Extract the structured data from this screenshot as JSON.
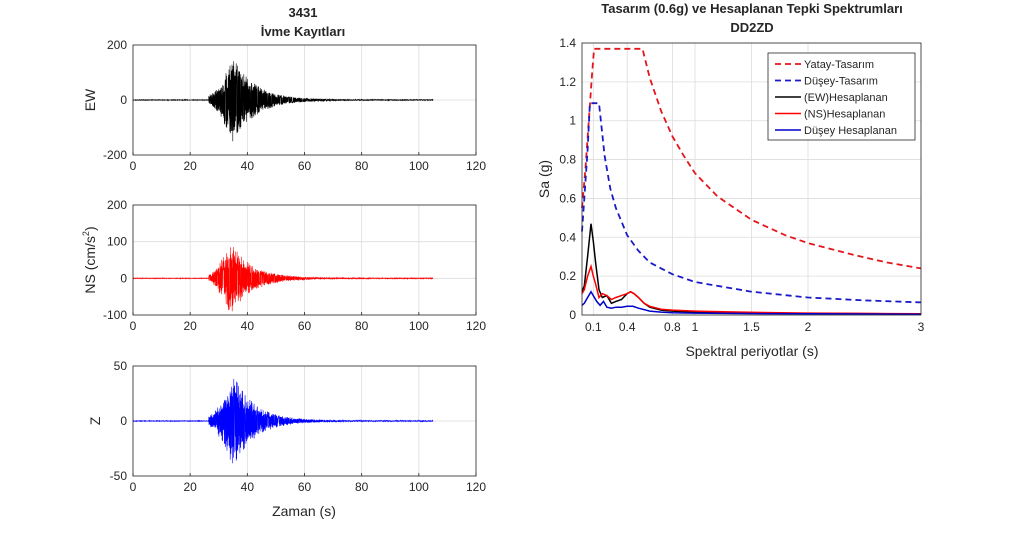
{
  "chart_data": [
    {
      "type": "line",
      "title": "3431",
      "subtitle": "İvme Kayıtları",
      "ylabel": "EW",
      "xlabel": "",
      "xlim": [
        0,
        120
      ],
      "ylim": [
        -200,
        200
      ],
      "xticks": [
        "0",
        "20",
        "40",
        "60",
        "80",
        "100",
        "120"
      ],
      "yticks": [
        "200",
        "0",
        "-200"
      ],
      "color": "#000000",
      "record": {
        "start": 0,
        "end": 105,
        "onset": 26.5,
        "peak_time": 35,
        "peak_pos": 158,
        "peak_neg": -125
      },
      "grid": true
    },
    {
      "type": "line",
      "ylabel_main": "NS (cm/s",
      "ylabel_sup": "2",
      "ylabel_end": ")",
      "xlabel": "",
      "xlim": [
        0,
        120
      ],
      "ylim": [
        -100,
        200
      ],
      "xticks": [
        "0",
        "20",
        "40",
        "60",
        "80",
        "100",
        "120"
      ],
      "yticks": [
        "200",
        "100",
        "0",
        "-100"
      ],
      "color": "#ff0000",
      "record": {
        "start": 0,
        "end": 105,
        "onset": 26.5,
        "peak_time": 34,
        "peak_pos": 100,
        "peak_neg": -72
      },
      "grid": true
    },
    {
      "type": "line",
      "ylabel": "Z",
      "xlabel": "Zaman (s)",
      "xlim": [
        0,
        120
      ],
      "ylim": [
        -50,
        50
      ],
      "xticks": [
        "0",
        "20",
        "40",
        "60",
        "80",
        "100",
        "120"
      ],
      "yticks": [
        "50",
        "0",
        "-50"
      ],
      "color": "#0000ff",
      "record": {
        "start": 0,
        "end": 105,
        "onset": 26.5,
        "peak_time": 35,
        "peak_pos": 30,
        "peak_neg": -42
      },
      "grid": true
    },
    {
      "type": "line",
      "title": "Tasarım (0.6g) ve Hesaplanan Tepki Spektrumları",
      "subtitle": "DD2ZD",
      "xlabel": "Spektral periyotlar (s)",
      "ylabel": "Sa (g)",
      "xlim": [
        0,
        3
      ],
      "ylim": [
        0,
        1.4
      ],
      "xticks": [
        0.1,
        0.4,
        0.8,
        1,
        1.5,
        2,
        3
      ],
      "xtick_labels": [
        "0.1",
        "0.4",
        "0.8",
        "1",
        "1.5",
        "2",
        "3"
      ],
      "yticks": [
        0,
        0.2,
        0.4,
        0.6,
        0.8,
        1,
        1.2,
        1.4
      ],
      "ytick_labels": [
        "0",
        "0.2",
        "0.4",
        "0.6",
        "0.8",
        "1",
        "1.2",
        "1.4"
      ],
      "legend_position": "top-right",
      "grid": true,
      "series": [
        {
          "name": "Yatay-Tasarım",
          "color": "#e3161b",
          "dash": true,
          "x": [
            0,
            0.03,
            0.06,
            0.09,
            0.107,
            0.2,
            0.3,
            0.4,
            0.5,
            0.535,
            0.6,
            0.7,
            0.8,
            0.9,
            1.0,
            1.2,
            1.5,
            1.8,
            2.0,
            2.4,
            2.7,
            3.0
          ],
          "y": [
            0.55,
            0.75,
            1.0,
            1.25,
            1.37,
            1.37,
            1.37,
            1.37,
            1.37,
            1.37,
            1.22,
            1.05,
            0.92,
            0.82,
            0.73,
            0.61,
            0.49,
            0.41,
            0.37,
            0.31,
            0.27,
            0.24
          ]
        },
        {
          "name": "Düşey-Tasarım",
          "color": "#1a1ac8",
          "dash": true,
          "x": [
            0,
            0.02,
            0.05,
            0.07,
            0.1,
            0.13,
            0.15,
            0.2,
            0.25,
            0.3,
            0.4,
            0.5,
            0.6,
            0.7,
            0.8,
            0.9,
            1.0,
            1.2,
            1.5,
            2.0,
            2.5,
            3.0
          ],
          "y": [
            0.43,
            0.6,
            0.85,
            1.09,
            1.09,
            1.09,
            1.09,
            0.82,
            0.65,
            0.55,
            0.41,
            0.33,
            0.27,
            0.24,
            0.21,
            0.19,
            0.17,
            0.15,
            0.12,
            0.09,
            0.075,
            0.065
          ]
        },
        {
          "name": "(EW)Hesaplanan",
          "color": "#000000",
          "dash": false,
          "x": [
            0,
            0.02,
            0.05,
            0.08,
            0.1,
            0.12,
            0.15,
            0.18,
            0.22,
            0.26,
            0.3,
            0.35,
            0.4,
            0.43,
            0.46,
            0.5,
            0.55,
            0.6,
            0.7,
            0.8,
            1.0,
            1.3,
            1.6,
            2.0,
            2.5,
            3.0
          ],
          "y": [
            0.12,
            0.15,
            0.3,
            0.47,
            0.38,
            0.27,
            0.13,
            0.09,
            0.1,
            0.06,
            0.07,
            0.08,
            0.11,
            0.12,
            0.11,
            0.09,
            0.06,
            0.04,
            0.025,
            0.02,
            0.015,
            0.012,
            0.01,
            0.008,
            0.006,
            0.005
          ]
        },
        {
          "name": "(NS)Hesaplanan",
          "color": "#ff0000",
          "dash": false,
          "x": [
            0,
            0.02,
            0.05,
            0.08,
            0.1,
            0.12,
            0.15,
            0.18,
            0.22,
            0.26,
            0.3,
            0.35,
            0.4,
            0.43,
            0.46,
            0.5,
            0.55,
            0.6,
            0.7,
            0.8,
            1.0,
            1.3,
            1.6,
            2.0,
            2.5,
            3.0
          ],
          "y": [
            0.11,
            0.13,
            0.2,
            0.25,
            0.2,
            0.16,
            0.09,
            0.11,
            0.1,
            0.08,
            0.09,
            0.1,
            0.11,
            0.12,
            0.11,
            0.09,
            0.06,
            0.045,
            0.03,
            0.025,
            0.02,
            0.016,
            0.013,
            0.01,
            0.008,
            0.006
          ]
        },
        {
          "name": "Düşey Hesaplanan",
          "color": "#0000cc",
          "dash": false,
          "x": [
            0,
            0.02,
            0.05,
            0.08,
            0.1,
            0.13,
            0.16,
            0.19,
            0.22,
            0.26,
            0.3,
            0.35,
            0.4,
            0.45,
            0.5,
            0.6,
            0.7,
            0.8,
            1.0,
            1.3,
            1.6,
            2.0,
            2.5,
            3.0
          ],
          "y": [
            0.05,
            0.06,
            0.09,
            0.12,
            0.1,
            0.07,
            0.05,
            0.07,
            0.04,
            0.035,
            0.04,
            0.04,
            0.045,
            0.045,
            0.035,
            0.02,
            0.015,
            0.012,
            0.01,
            0.008,
            0.007,
            0.006,
            0.005,
            0.004
          ]
        }
      ]
    }
  ]
}
